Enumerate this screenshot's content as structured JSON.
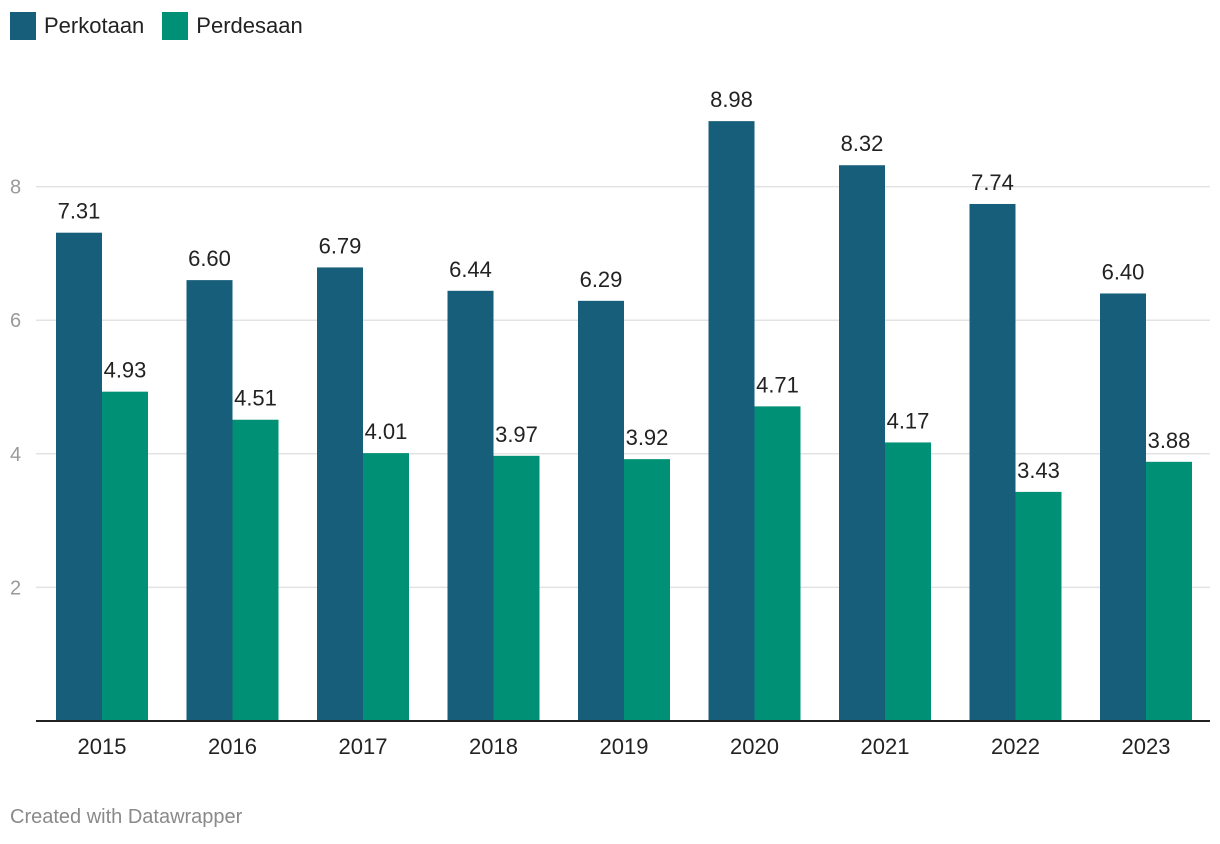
{
  "chart_data": {
    "type": "bar",
    "categories": [
      "2015",
      "2016",
      "2017",
      "2018",
      "2019",
      "2020",
      "2021",
      "2022",
      "2023"
    ],
    "series": [
      {
        "name": "Perkotaan",
        "color": "#175e7a",
        "values": [
          7.31,
          6.6,
          6.79,
          6.44,
          6.29,
          8.98,
          8.32,
          7.74,
          6.4
        ],
        "labels": [
          "7.31",
          "6.60",
          "6.79",
          "6.44",
          "6.29",
          "8.98",
          "8.32",
          "7.74",
          "6.40"
        ]
      },
      {
        "name": "Perdesaan",
        "color": "#009075",
        "values": [
          4.93,
          4.51,
          4.01,
          3.97,
          3.92,
          4.71,
          4.17,
          3.43,
          3.88
        ],
        "labels": [
          "4.93",
          "4.51",
          "4.01",
          "3.97",
          "3.92",
          "4.71",
          "4.17",
          "3.43",
          "3.88"
        ]
      }
    ],
    "yticks": [
      2,
      4,
      6,
      8
    ],
    "ylim": [
      0,
      9.5
    ],
    "grid": true,
    "legend": "top-left",
    "title": "",
    "xlabel": "",
    "ylabel": ""
  },
  "footer": "Created with Datawrapper"
}
